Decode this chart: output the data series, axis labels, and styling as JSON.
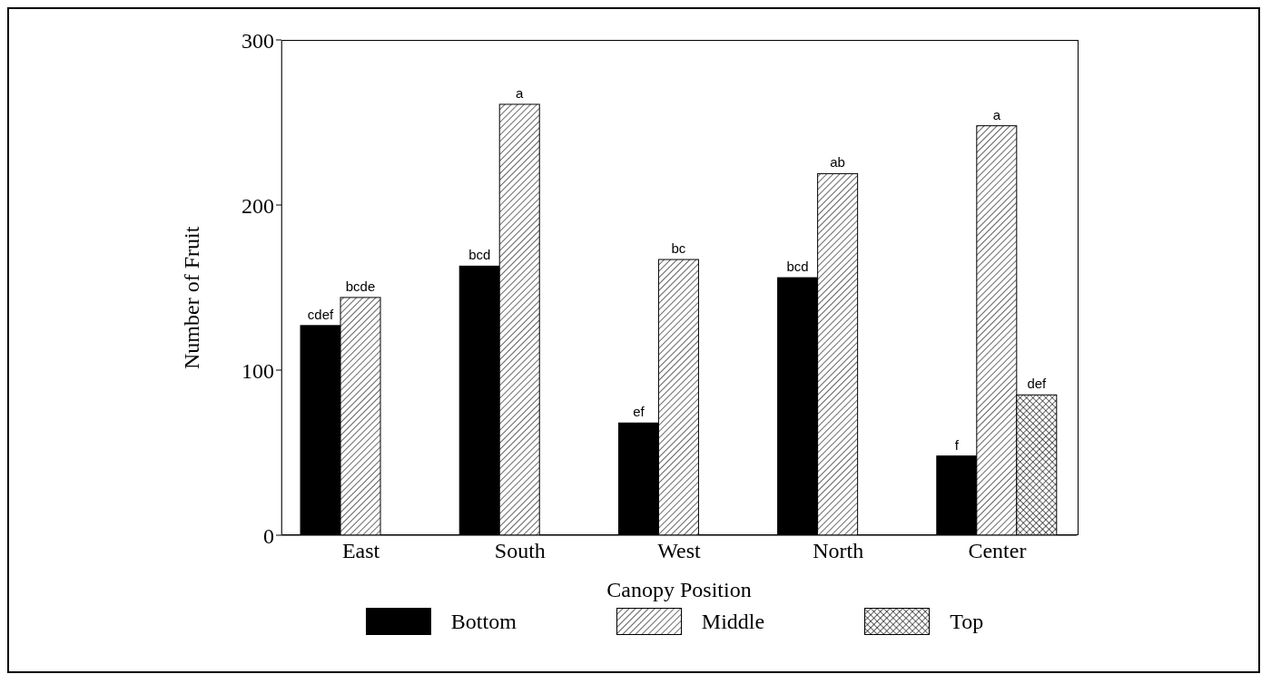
{
  "chart_data": {
    "type": "bar",
    "xlabel": "Canopy Position",
    "ylabel": "Number of Fruit",
    "categories": [
      "East",
      "South",
      "West",
      "North",
      "Center"
    ],
    "series": [
      {
        "name": "Bottom",
        "color": "#000000",
        "values": [
          127,
          163,
          68,
          156,
          48
        ],
        "value_labels": [
          "cdef",
          "bcd",
          "ef",
          "bcd",
          "f"
        ]
      },
      {
        "name": "Middle",
        "color": "#000000",
        "values": [
          144,
          261,
          167,
          219,
          248
        ],
        "value_labels": [
          "bcde",
          "a",
          "bc",
          "ab",
          "a"
        ]
      },
      {
        "name": "Top",
        "color": "#000000",
        "values": [
          null,
          null,
          null,
          null,
          85
        ],
        "value_labels": [
          null,
          null,
          null,
          null,
          "def"
        ]
      }
    ],
    "ylim": [
      0,
      300
    ],
    "yticks": [
      0,
      100,
      200,
      300
    ],
    "legend": "bottom"
  }
}
